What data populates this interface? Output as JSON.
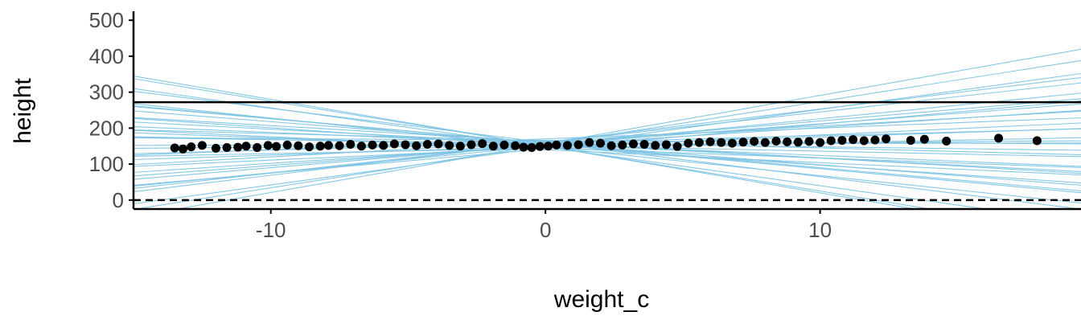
{
  "chart_data": {
    "type": "scatter",
    "title": "",
    "xlabel": "weight_c",
    "ylabel": "height",
    "xlim": [
      -15,
      19.5
    ],
    "ylim": [
      -25,
      525
    ],
    "x_ticks": [
      -10,
      0,
      10
    ],
    "x_tick_labels": [
      "-10",
      "0",
      "10"
    ],
    "y_ticks": [
      0,
      100,
      200,
      300,
      400,
      500
    ],
    "y_tick_labels": [
      "0",
      "100",
      "200",
      "300",
      "400",
      "500"
    ],
    "grid": false,
    "reference_lines": [
      {
        "name": "zero",
        "y": 0,
        "style": "dashed",
        "color": "#000000"
      },
      {
        "name": "upper",
        "y": 272,
        "style": "solid",
        "color": "#000000"
      }
    ],
    "prior_lines": {
      "color": "#7ec4e4",
      "x_center": 0,
      "lines": [
        {
          "a": 154,
          "b": 12.0
        },
        {
          "a": 150,
          "b": -12.5
        },
        {
          "a": 160,
          "b": 8.5
        },
        {
          "a": 148,
          "b": -8.0
        },
        {
          "a": 155,
          "b": 6.5
        },
        {
          "a": 158,
          "b": -6.0
        },
        {
          "a": 152,
          "b": 5.0
        },
        {
          "a": 162,
          "b": -4.5
        },
        {
          "a": 146,
          "b": 3.5
        },
        {
          "a": 156,
          "b": -3.2
        },
        {
          "a": 150,
          "b": 2.5
        },
        {
          "a": 165,
          "b": -2.0
        },
        {
          "a": 144,
          "b": 1.5
        },
        {
          "a": 158,
          "b": -1.0
        },
        {
          "a": 153,
          "b": 0.6
        },
        {
          "a": 160,
          "b": -9.5
        },
        {
          "a": 147,
          "b": 10.5
        },
        {
          "a": 157,
          "b": -7.0
        },
        {
          "a": 151,
          "b": 7.5
        },
        {
          "a": 149,
          "b": -5.2
        },
        {
          "a": 163,
          "b": 4.3
        },
        {
          "a": 145,
          "b": -2.8
        },
        {
          "a": 159,
          "b": 2.0
        },
        {
          "a": 152,
          "b": -1.6
        },
        {
          "a": 156,
          "b": 13.5
        },
        {
          "a": 150,
          "b": -13.0
        },
        {
          "a": 161,
          "b": 9.2
        },
        {
          "a": 148,
          "b": -10.8
        },
        {
          "a": 154,
          "b": 5.8
        },
        {
          "a": 157,
          "b": -4.0
        },
        {
          "a": 170,
          "b": 3.0
        },
        {
          "a": 140,
          "b": -3.6
        },
        {
          "a": 155,
          "b": 0.2
        },
        {
          "a": 166,
          "b": -0.5
        },
        {
          "a": 143,
          "b": 6.8
        },
        {
          "a": 158,
          "b": -6.8
        }
      ]
    },
    "points": {
      "color": "#000000",
      "x": [
        -13.5,
        -13.2,
        -12.9,
        -12.5,
        -12.0,
        -11.6,
        -11.2,
        -10.9,
        -10.5,
        -10.1,
        -9.8,
        -9.4,
        -9.0,
        -8.6,
        -8.2,
        -7.9,
        -7.5,
        -7.1,
        -6.7,
        -6.3,
        -5.9,
        -5.5,
        -5.1,
        -4.7,
        -4.3,
        -3.9,
        -3.5,
        -3.1,
        -2.7,
        -2.3,
        -1.9,
        -1.5,
        -1.1,
        -0.8,
        -0.5,
        -0.2,
        0.1,
        0.4,
        0.8,
        1.2,
        1.6,
        2.0,
        2.4,
        2.8,
        3.2,
        3.6,
        4.0,
        4.4,
        4.8,
        5.2,
        5.6,
        6.0,
        6.4,
        6.8,
        7.2,
        7.6,
        8.0,
        8.4,
        8.8,
        9.2,
        9.6,
        10.0,
        10.4,
        10.8,
        11.2,
        11.6,
        12.0,
        12.4,
        13.3,
        13.8,
        14.6,
        16.5,
        17.9
      ],
      "y": [
        145,
        142,
        148,
        152,
        144,
        146,
        147,
        150,
        146,
        152,
        149,
        153,
        151,
        148,
        150,
        152,
        151,
        155,
        150,
        153,
        152,
        156,
        154,
        151,
        155,
        156,
        152,
        150,
        154,
        157,
        150,
        153,
        151,
        147,
        146,
        149,
        150,
        153,
        152,
        154,
        160,
        158,
        151,
        153,
        156,
        155,
        152,
        154,
        149,
        158,
        160,
        162,
        160,
        158,
        161,
        163,
        160,
        164,
        162,
        161,
        163,
        160,
        165,
        166,
        168,
        165,
        167,
        170,
        166,
        169,
        164,
        172,
        165
      ]
    }
  }
}
